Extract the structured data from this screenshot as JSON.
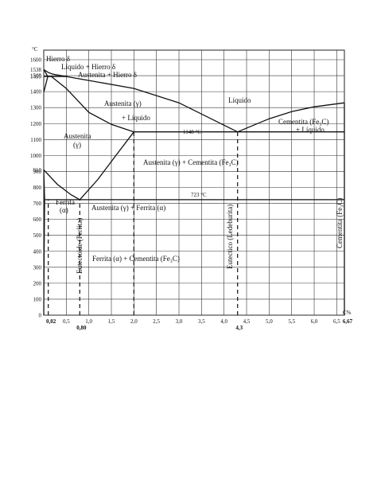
{
  "chart_data": {
    "type": "diagram",
    "title": "",
    "x_unit": "C%",
    "y_unit": "°C",
    "x_ticks": [
      "0,5",
      "1,0",
      "1,5",
      "2,0",
      "2,5",
      "3,0",
      "3,5",
      "4,0",
      "4,5",
      "5,0",
      "5,5",
      "6,0",
      "6,5"
    ],
    "x_special_ticks": [
      "0,02",
      "0,80",
      "4,3",
      "6,67"
    ],
    "y_ticks": [
      "1600",
      "1500",
      "1400",
      "1300",
      "1200",
      "1100",
      "1000",
      "900",
      "800",
      "700",
      "600",
      "500",
      "400",
      "300",
      "200",
      "100",
      "0"
    ],
    "y_special_ticks": [
      "1538",
      "1495",
      "910"
    ],
    "xlim": [
      0,
      6.67
    ],
    "ylim": [
      0,
      1600
    ],
    "eutectic_temp_label": "1148 °C",
    "eutectoid_temp_label": "723 °C",
    "phase_labels": {
      "hierro_delta": "Hierro δ",
      "liquido_hierro_delta": "Líquido + Hierro δ",
      "austenita_hierro_delta": "Austenita + Hierro δ",
      "liquido": "Líquido",
      "austenita_liquido_1": "Austenita (γ)",
      "austenita_liquido_2": "+  Líquido",
      "cementita_liquido_1": "Cementita  (Fe₃C)",
      "cementita_liquido_2": "+ Líquido",
      "austenita_1": "Austenita",
      "austenita_2": "(γ)",
      "austenita_cementita": "Austenita (γ) + Cementita (Fe₃C)",
      "ferrita_1": "Ferrita",
      "ferrita_2": "(α)",
      "austenita_ferrita": "Austenita (γ) + Ferrita (α)",
      "ferrita_cementita": "Ferrita (α) + Cementita (Fe₃C)"
    },
    "vertical_labels": {
      "eutectoide": "Eutectoide (Perlita)",
      "eutectico": "Eutectico (Ledeburita)",
      "cementita": "Cementita (Fe₃C)"
    },
    "key_points": {
      "melting_fe": [
        0,
        1538
      ],
      "delta_gamma": [
        0,
        1495
      ],
      "alpha_gamma_fe": [
        0,
        910
      ],
      "eutectic": [
        4.3,
        1148
      ],
      "eutectoid": [
        0.8,
        723
      ],
      "max_c_austenite": [
        2.0,
        1148
      ],
      "max_c_ferrite": [
        0.02,
        723
      ]
    }
  }
}
